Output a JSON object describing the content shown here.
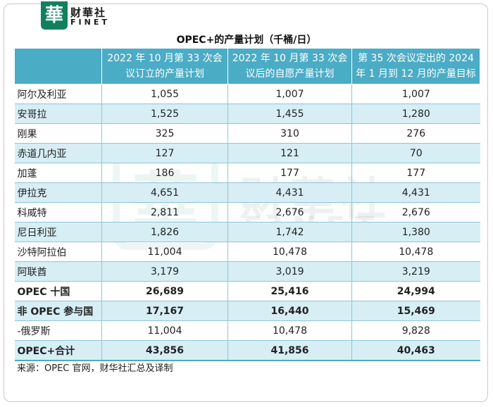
{
  "logo": {
    "badge_char": "華",
    "name_cn": "财華社",
    "name_en": "FINET",
    "watermark_cn": "財華社",
    "watermark_en": "FINET"
  },
  "title": "OPEC+的产量计划（千桶/日）",
  "table": {
    "headers": [
      "",
      "2022 年 10 月第 33 次会议订立的产量计划",
      "2022 年 10 月第 33 次会议后的自愿产量计划",
      "第 35 次会议定出的 2024 年 1 月到 12 月的产量目标"
    ],
    "rows": [
      {
        "name": "阿尔及利亚",
        "values": [
          "1,055",
          "1,007",
          "1,007"
        ]
      },
      {
        "name": "安哥拉",
        "values": [
          "1,525",
          "1,455",
          "1,280"
        ]
      },
      {
        "name": "刚果",
        "values": [
          "325",
          "310",
          "276"
        ]
      },
      {
        "name": "赤道几内亚",
        "values": [
          "127",
          "121",
          "70"
        ]
      },
      {
        "name": "加蓬",
        "values": [
          "186",
          "177",
          "177"
        ]
      },
      {
        "name": "伊拉克",
        "values": [
          "4,651",
          "4,431",
          "4,431"
        ]
      },
      {
        "name": "科威特",
        "values": [
          "2,811",
          "2,676",
          "2,676"
        ]
      },
      {
        "name": "尼日利亚",
        "values": [
          "1,826",
          "1,742",
          "1,380"
        ]
      },
      {
        "name": "沙特阿拉伯",
        "values": [
          "11,004",
          "10,478",
          "10,478"
        ]
      },
      {
        "name": "阿联酋",
        "values": [
          "3,179",
          "3,019",
          "3,219"
        ]
      },
      {
        "name": "OPEC 十国",
        "values": [
          "26,689",
          "25,416",
          "24,994"
        ]
      },
      {
        "name": "非 OPEC 参与国",
        "values": [
          "17,167",
          "16,440",
          "15,469"
        ]
      },
      {
        "name": "-俄罗斯",
        "values": [
          "11,004",
          "10,478",
          "9,828"
        ]
      },
      {
        "name": "OPEC+合计",
        "values": [
          "43,856",
          "41,856",
          "40,463"
        ]
      }
    ]
  },
  "source": "来源：OPEC 官网，财华社汇总及译制",
  "colors": {
    "header_bg": "#4bacc6",
    "band_bg": "#d7eef5",
    "logo_green": "#12805f"
  }
}
